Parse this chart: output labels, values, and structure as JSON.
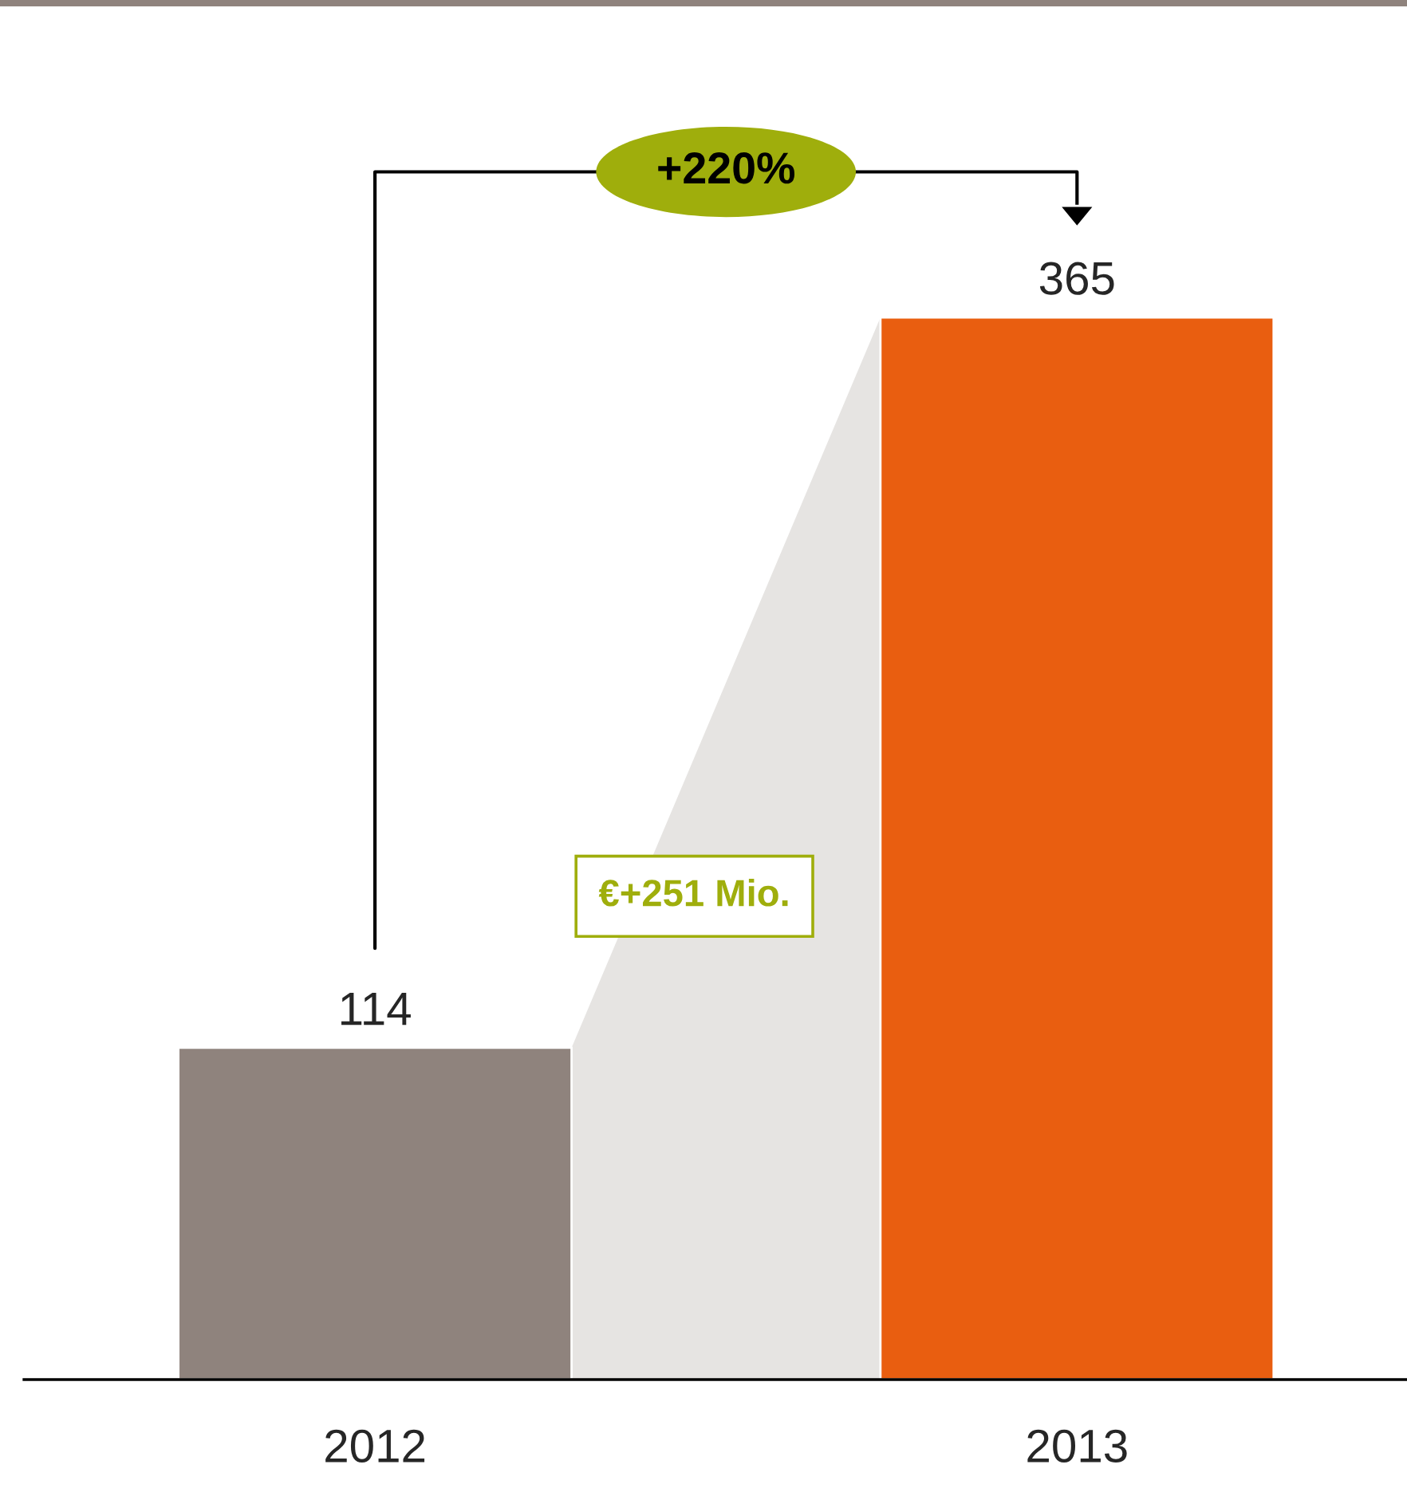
{
  "chart_data": {
    "type": "bar",
    "categories": [
      "2012",
      "2013"
    ],
    "values": [
      114,
      365
    ],
    "colors": [
      "#8f837d",
      "#e95e10"
    ],
    "data_labels": true,
    "grid": false,
    "legend": false,
    "annotations": [
      "+220%",
      "€+251 Mio."
    ]
  }
}
